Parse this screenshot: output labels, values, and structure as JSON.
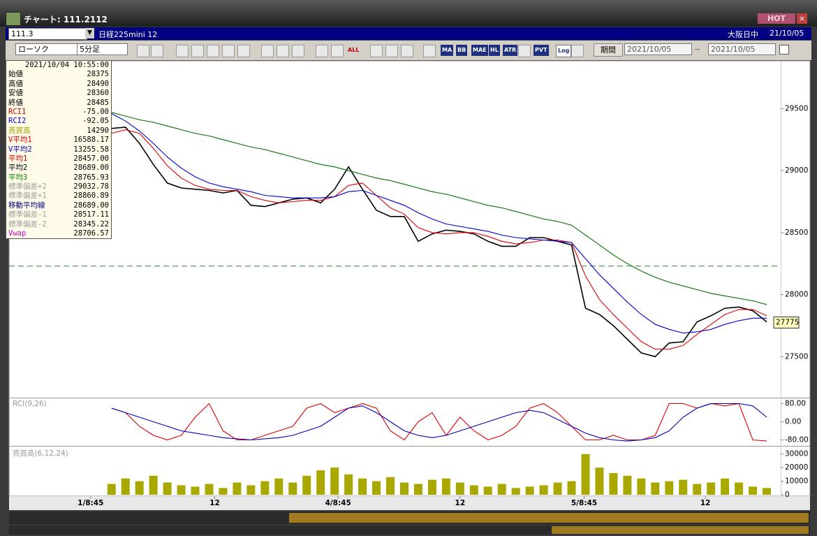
{
  "window": {
    "title": "チャート: 111.2112",
    "hot": "HOT"
  },
  "toolbar": {
    "code": "111.3",
    "name": "日経225mini 12",
    "session": "大阪日中",
    "date": "21/10/05",
    "chart_style": "ローソク",
    "interval": "5分足",
    "icon_labels": [
      "ALL",
      "MA",
      "BB",
      "MAE",
      "HL",
      "ATR",
      "PVT",
      "Log"
    ],
    "period_label": "期間",
    "from": "2021/10/05",
    "tilde": "~",
    "to": "2021/10/05"
  },
  "info_box": {
    "timestamp": "2021/10/04 10:55:00",
    "rows": [
      {
        "label": "始値",
        "value": "28375",
        "color": "#000000"
      },
      {
        "label": "高値",
        "value": "28490",
        "color": "#000000"
      },
      {
        "label": "安値",
        "value": "28360",
        "color": "#000000"
      },
      {
        "label": "終値",
        "value": "28485",
        "color": "#000000"
      },
      {
        "label": "RCI1",
        "value": "-75.00",
        "color": "#d00000"
      },
      {
        "label": "RCI2",
        "value": "-92.05",
        "color": "#0000c0"
      },
      {
        "label": "売買高",
        "value": "14290",
        "color": "#a0a000"
      },
      {
        "label": "V平均1",
        "value": "16588.17",
        "color": "#d00000"
      },
      {
        "label": "V平均2",
        "value": "13255.58",
        "color": "#0000c0"
      },
      {
        "label": "平均1",
        "value": "28457.00",
        "color": "#d00000"
      },
      {
        "label": "平均2",
        "value": "28689.00",
        "color": "#000000"
      },
      {
        "label": "平均3",
        "value": "28765.93",
        "color": "#008000"
      },
      {
        "label": "標準偏差+2",
        "value": "29032.78",
        "color": "#a0a0a0"
      },
      {
        "label": "標準偏差+1",
        "value": "28860.89",
        "color": "#a0a0a0"
      },
      {
        "label": "移動平均線",
        "value": "28689.00",
        "color": "#000080"
      },
      {
        "label": "標準偏差-1",
        "value": "28517.11",
        "color": "#a0a0a0"
      },
      {
        "label": "標準偏差-2",
        "value": "28345.22",
        "color": "#a0a0a0"
      },
      {
        "label": "Vwap",
        "value": "28706.57",
        "color": "#d000d0"
      }
    ]
  },
  "chart_data": [
    {
      "type": "line",
      "xlim": [
        -7.35,
        48
      ],
      "ylim": [
        27175,
        29880
      ],
      "yticks": [
        27500,
        28000,
        28500,
        29000,
        29500
      ],
      "reference_line": 28230,
      "current_price": 27775,
      "series": [
        {
          "color": "#000000",
          "values": [
            29340,
            29350,
            29220,
            29050,
            28900,
            28860,
            28850,
            28840,
            28820,
            28840,
            28720,
            28710,
            28740,
            28770,
            28780,
            28740,
            28850,
            29030,
            28850,
            28680,
            28630,
            28630,
            28430,
            28490,
            28520,
            28510,
            28490,
            28430,
            28390,
            28390,
            28460,
            28460,
            28430,
            28400,
            27890,
            27840,
            27750,
            27640,
            27530,
            27500,
            27610,
            27620,
            27780,
            27830,
            27890,
            27900,
            27870,
            27780
          ]
        },
        {
          "color": "#e00000",
          "values": [
            29300,
            29330,
            29300,
            29180,
            29040,
            28940,
            28880,
            28850,
            28840,
            28840,
            28790,
            28760,
            28740,
            28750,
            28760,
            28760,
            28790,
            28880,
            28900,
            28800,
            28700,
            28650,
            28540,
            28500,
            28490,
            28500,
            28500,
            28470,
            28430,
            28410,
            28420,
            28440,
            28440,
            28420,
            28150,
            27960,
            27840,
            27730,
            27620,
            27560,
            27560,
            27590,
            27680,
            27760,
            27840,
            27880,
            27880,
            27830
          ]
        },
        {
          "color": "#0000cc",
          "values": [
            29460,
            29400,
            29320,
            29220,
            29110,
            29020,
            28950,
            28900,
            28870,
            28850,
            28830,
            28800,
            28790,
            28780,
            28780,
            28780,
            28790,
            28830,
            28840,
            28800,
            28760,
            28720,
            28660,
            28610,
            28570,
            28550,
            28530,
            28510,
            28480,
            28460,
            28450,
            28440,
            28430,
            28420,
            28290,
            28160,
            28050,
            27940,
            27840,
            27760,
            27720,
            27690,
            27700,
            27720,
            27760,
            27790,
            27810,
            27810
          ]
        },
        {
          "color": "#007000",
          "values": [
            29470,
            29440,
            29410,
            29390,
            29360,
            29330,
            29300,
            29280,
            29250,
            29220,
            29190,
            29170,
            29140,
            29110,
            29080,
            29050,
            29030,
            29000,
            28970,
            28940,
            28920,
            28890,
            28860,
            28830,
            28810,
            28780,
            28750,
            28720,
            28700,
            28670,
            28640,
            28610,
            28590,
            28560,
            28480,
            28400,
            28320,
            28250,
            28190,
            28140,
            28100,
            28070,
            28040,
            28010,
            27990,
            27970,
            27950,
            27920
          ]
        }
      ]
    },
    {
      "type": "line",
      "title": "RCI(9,26)",
      "xlim": [
        -7.35,
        48
      ],
      "ylim": [
        -100,
        100
      ],
      "yticks": [
        {
          "value": -80,
          "label": "-80.00"
        },
        {
          "value": 0,
          "label": "0.00"
        },
        {
          "value": 80,
          "label": "80.00"
        }
      ],
      "series": [
        {
          "color": "#e00000",
          "values": [
            60,
            40,
            -20,
            -60,
            -80,
            -60,
            20,
            80,
            -40,
            -80,
            -80,
            -60,
            -40,
            -20,
            60,
            80,
            40,
            60,
            80,
            60,
            -40,
            -80,
            0,
            40,
            -60,
            20,
            -40,
            -80,
            -60,
            -20,
            60,
            80,
            40,
            -20,
            -80,
            -80,
            -60,
            -80,
            -80,
            -60,
            80,
            80,
            60,
            80,
            70,
            80,
            -80,
            -85
          ]
        },
        {
          "color": "#0000c0",
          "values": [
            60,
            40,
            20,
            0,
            -20,
            -40,
            -50,
            -60,
            -70,
            -75,
            -80,
            -75,
            -70,
            -60,
            -40,
            -20,
            20,
            60,
            70,
            40,
            0,
            -40,
            -60,
            -70,
            -60,
            -40,
            -20,
            0,
            20,
            40,
            50,
            40,
            10,
            -20,
            -50,
            -70,
            -80,
            -85,
            -80,
            -70,
            -40,
            20,
            60,
            80,
            80,
            80,
            70,
            20
          ]
        }
      ]
    },
    {
      "type": "bar",
      "title": "売買高(6,12,24)",
      "xlim": [
        -7.35,
        48
      ],
      "ylim": [
        0,
        35000
      ],
      "yticks": [
        0,
        10000,
        20000,
        30000
      ],
      "color": "#a8a800",
      "xticks": [
        {
          "value": -1.5,
          "label": "1/8:45"
        },
        {
          "value": 7.4,
          "label": "12"
        },
        {
          "value": 16.25,
          "label": "4/8:45"
        },
        {
          "value": 25,
          "label": "12"
        },
        {
          "value": 33.9,
          "label": "5/8:45"
        },
        {
          "value": 42.6,
          "label": "12"
        }
      ],
      "values": [
        8000,
        12000,
        10000,
        14000,
        9000,
        7000,
        6000,
        8000,
        5000,
        9000,
        7000,
        10000,
        12000,
        9000,
        14000,
        18000,
        20000,
        15000,
        12000,
        10000,
        13000,
        9000,
        8000,
        11000,
        12000,
        9000,
        7000,
        6000,
        8000,
        5000,
        6000,
        7000,
        9000,
        10000,
        30000,
        20000,
        16000,
        14000,
        12000,
        9000,
        10000,
        11000,
        8000,
        9000,
        12000,
        9000,
        6000,
        5000
      ]
    }
  ]
}
